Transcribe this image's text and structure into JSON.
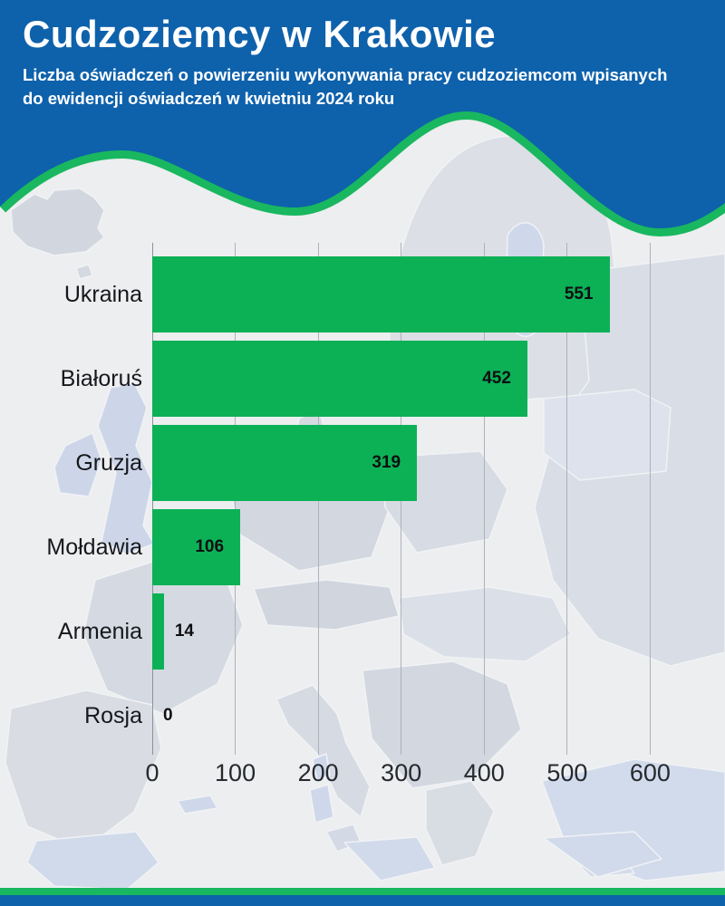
{
  "header": {
    "title": "Cudzoziemcy w Krakowie",
    "subtitle": "Liczba oświadczeń o powierzeniu wykonywania pracy cudzoziemcom wpisanych do ewidencji oświadczeń w kwietniu 2024 roku",
    "background_color": "#0e61ab",
    "wave_accent_color": "#19b75f"
  },
  "chart_data": {
    "type": "bar",
    "orientation": "horizontal",
    "categories": [
      "Ukraina",
      "Białoruś",
      "Gruzja",
      "Mołdawia",
      "Armenia",
      "Rosja"
    ],
    "values": [
      551,
      452,
      319,
      106,
      14,
      0
    ],
    "x_ticks": [
      0,
      100,
      200,
      300,
      400,
      500,
      600
    ],
    "xlim": [
      0,
      600
    ],
    "grid": true,
    "legend": false,
    "bar_color": "#0cb156",
    "value_label_color": "#0e0f11",
    "xlabel": "",
    "ylabel": ""
  },
  "footer": {
    "accent_line_color": "#19b75f",
    "bar_color": "#0e61ab"
  }
}
